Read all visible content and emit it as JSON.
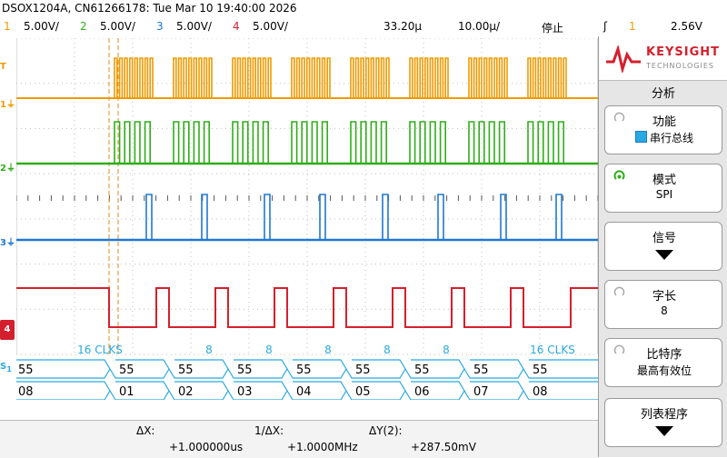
{
  "header": {
    "title": "DSOX1204A, CN61266178: Tue Mar 10 19:40:00 2026"
  },
  "channels": [
    {
      "num": "1",
      "scale": "5.00V/",
      "color": "#f09a00"
    },
    {
      "num": "2",
      "scale": "5.00V/",
      "color": "#2fae18"
    },
    {
      "num": "3",
      "scale": "5.00V/",
      "color": "#1f78d1"
    },
    {
      "num": "4",
      "scale": "5.00V/",
      "color": "#d4202d"
    }
  ],
  "timebase": {
    "delay": "33.20µ",
    "scale": "10.00µ/",
    "run_state": "停止",
    "trigger_source": "1",
    "trigger_level": "2.56V"
  },
  "bus": {
    "clock_labels": [
      "16 CLKS",
      "8",
      "8",
      "8",
      "8",
      "8",
      "16 CLKS"
    ],
    "mosi_values": [
      "55",
      "55",
      "55",
      "55",
      "55",
      "55",
      "55",
      "55",
      "55"
    ],
    "miso_values": [
      "08",
      "01",
      "02",
      "03",
      "04",
      "05",
      "06",
      "07",
      "08"
    ]
  },
  "measurements": {
    "dx_label": "ΔX:",
    "dx_value": "+1.000000us",
    "inv_dx_label": "1/ΔX:",
    "inv_dx_value": "+1.0000MHz",
    "dy_label": "ΔY(2):",
    "dy_value": "+287.50mV"
  },
  "panel": {
    "brand": "KEYSIGHT",
    "brand_sub": "TECHNOLOGIES",
    "menu_title": "分析",
    "softkeys": [
      {
        "title": "功能",
        "value": "串行总线"
      },
      {
        "title": "模式",
        "value": "SPI"
      },
      {
        "title": "信号",
        "value": ""
      },
      {
        "title": "字长",
        "value": "8"
      },
      {
        "title": "比特序",
        "value": "最高有效位"
      },
      {
        "title": "列表程序",
        "value": ""
      }
    ]
  },
  "colors": {
    "bus": "#29a9e0",
    "cursor": "#e08a1e",
    "grid": "#bfbfbf"
  }
}
